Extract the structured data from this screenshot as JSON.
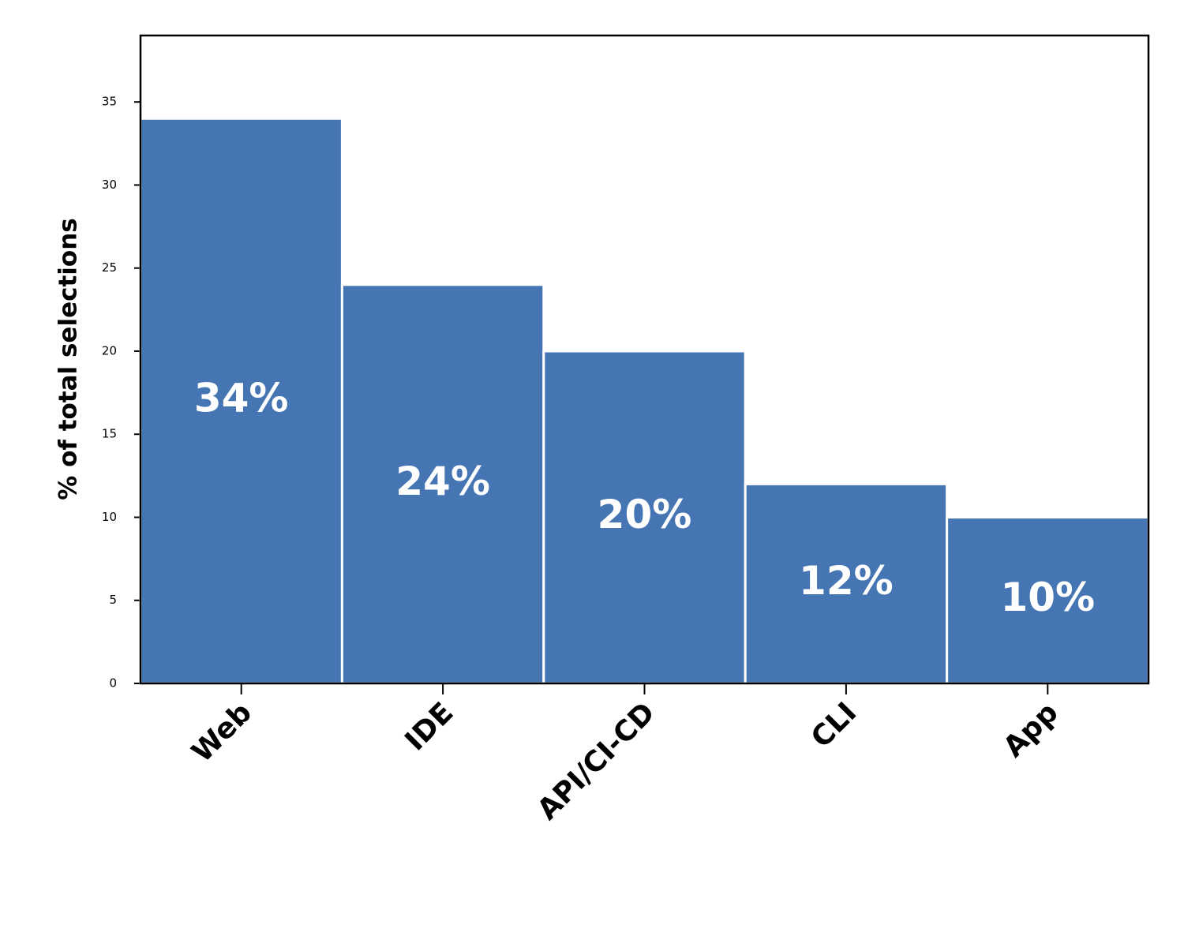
{
  "chart_data": {
    "type": "bar",
    "y_label": "% of total selections",
    "categories": [
      "Web",
      "IDE",
      "API/CI-CD",
      "CLI",
      "App"
    ],
    "values": [
      34,
      24,
      20,
      12,
      10
    ],
    "value_labels": [
      "34%",
      "24%",
      "20%",
      "12%",
      "10%"
    ],
    "color": "#4675b4",
    "ylim": [
      0,
      39
    ],
    "yticks": [
      0,
      5,
      10,
      15,
      20,
      25,
      30,
      35
    ],
    "grid": false
  }
}
